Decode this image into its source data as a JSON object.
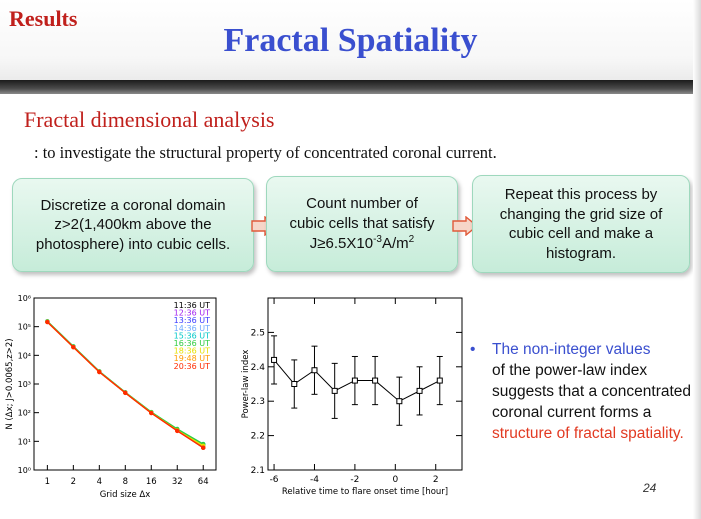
{
  "header": {
    "section": "Results",
    "title": "Fractal Spatiality"
  },
  "subtitle": "Fractal dimensional analysis",
  "description": ": to investigate the structural property of concentrated coronal current.",
  "steps": [
    {
      "lines": [
        "Discretize a coronal domain",
        "z>2(1,400km above the",
        "photosphere) into cubic cells."
      ]
    },
    {
      "lines": [
        "Count number of",
        "cubic cells that satisfy"
      ],
      "formula": {
        "prefix": "J≥6.5X10",
        "sup": "-3",
        "mid": "A/m",
        "sup2": "2"
      }
    },
    {
      "lines": [
        "Repeat this process by",
        "changing the grid size of",
        "cubic cell and make a",
        "histogram."
      ]
    }
  ],
  "bullet": {
    "part1": "The non-integer values",
    "part2": "of the power-law index",
    "part3": "suggests that a concentrated",
    "part4": "coronal current forms a",
    "part5": "structure of fractal spatiality."
  },
  "page_number": "24",
  "colors": {
    "title": "#3a4fcf",
    "accent_red": "#c0201c",
    "box_fill": "#d4f1e2",
    "box_border": "#9ed8bd"
  },
  "chart_data": [
    {
      "type": "line",
      "xlabel": "Grid size  Δx",
      "ylabel": "N (Δx; J>0.0065,z>2)",
      "xscale": "log2",
      "yscale": "log",
      "xlim": [
        0.7,
        90
      ],
      "ylim": [
        1,
        1000000
      ],
      "xticks": [
        "1",
        "2",
        "4",
        "8",
        "16",
        "32",
        "64"
      ],
      "yticks": [
        "10⁰",
        "10¹",
        "10²",
        "10³",
        "10⁴",
        "10⁵",
        "10⁶"
      ],
      "x": [
        1,
        2,
        4,
        8,
        16,
        32,
        64
      ],
      "series": [
        {
          "name": "11:36 UT",
          "color": "#000000",
          "values": [
            150000,
            20000,
            2700,
            500,
            100,
            25,
            6
          ]
        },
        {
          "name": "12:36 UT",
          "color": "#a020f0",
          "values": [
            148000,
            19800,
            2680,
            505,
            102,
            24,
            6
          ]
        },
        {
          "name": "13:36 UT",
          "color": "#3a3aff",
          "values": [
            152000,
            20200,
            2720,
            498,
            101,
            25,
            7
          ]
        },
        {
          "name": "14:36 UT",
          "color": "#6fa8ff",
          "values": [
            151000,
            20100,
            2710,
            502,
            100,
            26,
            7
          ]
        },
        {
          "name": "15:36 UT",
          "color": "#00c8c8",
          "values": [
            153000,
            20500,
            2750,
            510,
            104,
            26,
            8
          ]
        },
        {
          "name": "16:36 UT",
          "color": "#2ecc40",
          "values": [
            154000,
            20600,
            2760,
            512,
            105,
            27,
            8
          ]
        },
        {
          "name": "18:36 UT",
          "color": "#e6e000",
          "values": [
            147000,
            19500,
            2650,
            495,
            99,
            24,
            7
          ]
        },
        {
          "name": "19:48 UT",
          "color": "#ff9a00",
          "values": [
            146000,
            19400,
            2640,
            492,
            98,
            24,
            6
          ]
        },
        {
          "name": "20:36 UT",
          "color": "#ff2a00",
          "values": [
            145000,
            19300,
            2620,
            490,
            97,
            23,
            6
          ]
        }
      ]
    },
    {
      "type": "line",
      "xlabel": "Relative time to flare onset time [hour]",
      "ylabel": "Power-law index",
      "xlim": [
        -6.3,
        3.3
      ],
      "ylim": [
        2.1,
        2.6
      ],
      "xticks": [
        "-6",
        "-4",
        "-2",
        "0",
        "2"
      ],
      "yticks": [
        "2.1",
        "2.2",
        "2.3",
        "2.4",
        "2.5"
      ],
      "x": [
        -6,
        -5,
        -4,
        -3,
        -2,
        -1,
        0.2,
        1.2,
        2.2
      ],
      "values": [
        2.42,
        2.35,
        2.39,
        2.33,
        2.36,
        2.36,
        2.3,
        2.33,
        2.36
      ],
      "errors": [
        0.07,
        0.07,
        0.07,
        0.08,
        0.07,
        0.07,
        0.07,
        0.07,
        0.07
      ]
    }
  ]
}
